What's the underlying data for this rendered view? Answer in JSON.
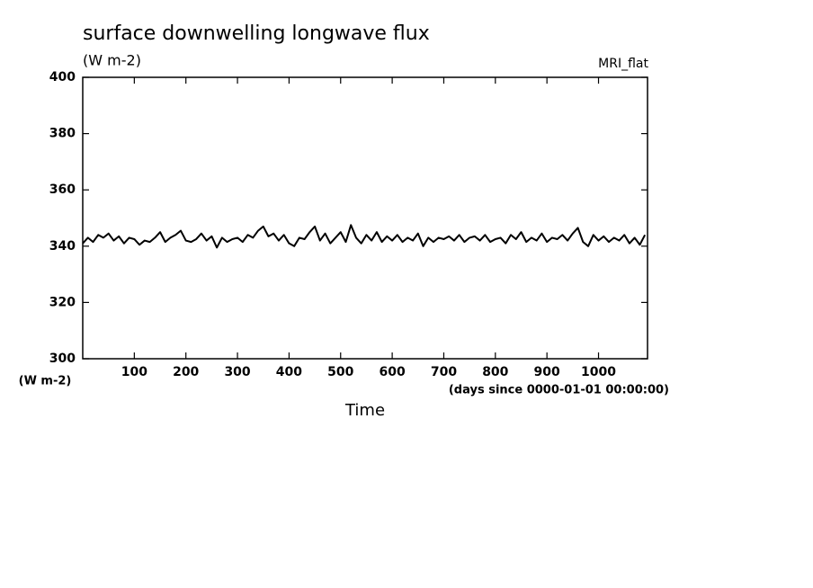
{
  "chart_data": {
    "type": "line",
    "title": "surface downwelling longwave flux",
    "subtitle": "(W m-2)",
    "annotation": "MRI_flat",
    "ylabel": "(W m-2)",
    "xunits": "(days since 0000-01-01 00:00:00)",
    "xlabel": "Time",
    "x": [
      0,
      10,
      20,
      30,
      40,
      50,
      60,
      70,
      80,
      90,
      100,
      110,
      120,
      130,
      140,
      150,
      160,
      170,
      180,
      190,
      200,
      210,
      220,
      230,
      240,
      250,
      260,
      270,
      280,
      290,
      300,
      310,
      320,
      330,
      340,
      350,
      360,
      370,
      380,
      390,
      400,
      410,
      420,
      430,
      440,
      450,
      460,
      470,
      480,
      490,
      500,
      510,
      520,
      530,
      540,
      550,
      560,
      570,
      580,
      590,
      600,
      610,
      620,
      630,
      640,
      650,
      660,
      670,
      680,
      690,
      700,
      710,
      720,
      730,
      740,
      750,
      760,
      770,
      780,
      790,
      800,
      810,
      820,
      830,
      840,
      850,
      860,
      870,
      880,
      890,
      900,
      910,
      920,
      930,
      940,
      950,
      960,
      970,
      980,
      990,
      1000,
      1010,
      1020,
      1030,
      1040,
      1050,
      1060,
      1070,
      1080,
      1090
    ],
    "series": [
      {
        "color": "#000000",
        "values": [
          341,
          343,
          341.5,
          344,
          343,
          344.5,
          342,
          343.5,
          341,
          343,
          342.5,
          340.5,
          342,
          341.5,
          343,
          345,
          341.5,
          343,
          344,
          345.5,
          342,
          341.5,
          342.5,
          344.5,
          342,
          343.5,
          339.5,
          343,
          341.5,
          342.5,
          343,
          341.5,
          344,
          343,
          345.5,
          347,
          343.5,
          344.5,
          342,
          344,
          341,
          340,
          343,
          342.5,
          345,
          347,
          342,
          344.5,
          341,
          343,
          345,
          341.5,
          347.5,
          343,
          341,
          344,
          342,
          345,
          341.5,
          343.5,
          342,
          344,
          341.5,
          343,
          342,
          344.5,
          340,
          343,
          341.5,
          343,
          342.5,
          343.5,
          342,
          344,
          341.5,
          343,
          343.5,
          342,
          344,
          341.5,
          342.5,
          343,
          341,
          344,
          342.5,
          345,
          341.5,
          343,
          342,
          344.5,
          341.5,
          343,
          342.5,
          344,
          342,
          344.5,
          346.5,
          341.5,
          340,
          344,
          342,
          343.5,
          341.5,
          343,
          342,
          344,
          341,
          343,
          340.5,
          344
        ]
      }
    ],
    "xlim": [
      0,
      1095
    ],
    "xticks": [
      100,
      200,
      300,
      400,
      500,
      600,
      700,
      800,
      900,
      1000
    ],
    "ylim": [
      300,
      400
    ],
    "yticks": [
      300,
      320,
      340,
      360,
      380,
      400
    ]
  }
}
